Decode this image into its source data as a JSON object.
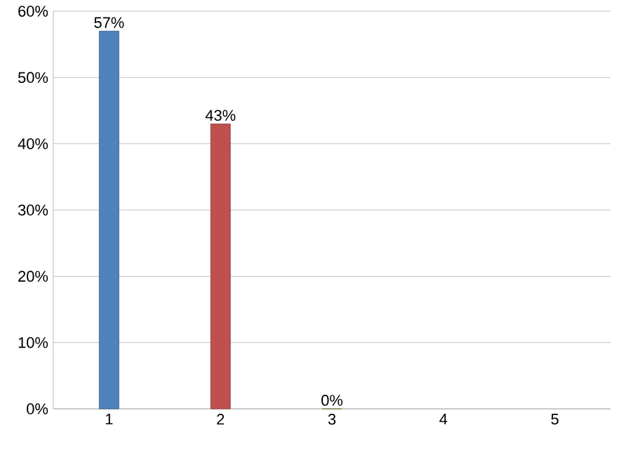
{
  "chart_data": {
    "type": "bar",
    "categories": [
      "1",
      "2",
      "3",
      "4",
      "5"
    ],
    "values": [
      57,
      43,
      0,
      null,
      null
    ],
    "colors": [
      "#4f81bd",
      "#c0504d",
      "#9bbb59",
      "#4f81bd",
      "#4f81bd"
    ],
    "value_labels": [
      "57%",
      "43%",
      "0%",
      null,
      null
    ],
    "ylim": [
      0,
      60
    ],
    "yticks": [
      {
        "value": 0,
        "label": "0%"
      },
      {
        "value": 10,
        "label": "10%"
      },
      {
        "value": 20,
        "label": "20%"
      },
      {
        "value": 30,
        "label": "30%"
      },
      {
        "value": 40,
        "label": "40%"
      },
      {
        "value": 50,
        "label": "50%"
      },
      {
        "value": 60,
        "label": "60%"
      }
    ],
    "grid": "y"
  }
}
